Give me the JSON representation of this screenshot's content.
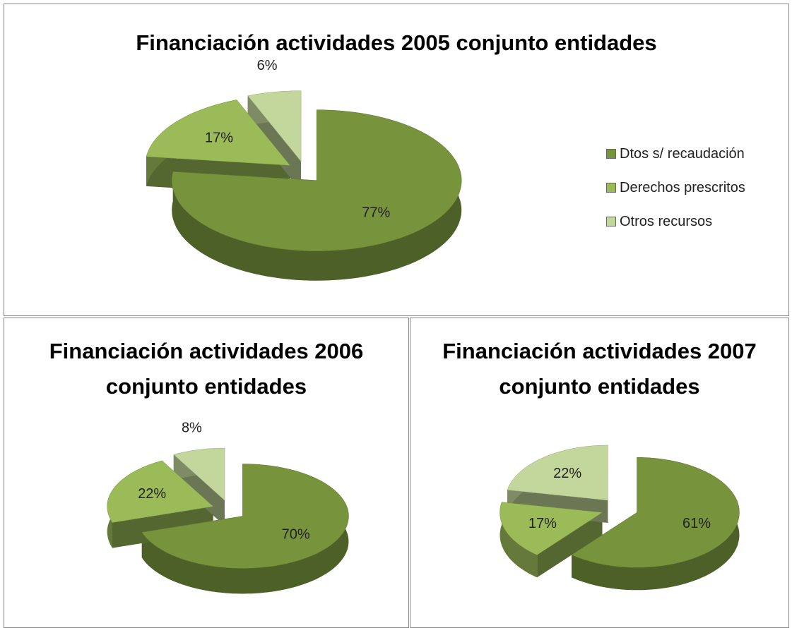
{
  "chart_data": [
    {
      "type": "pie",
      "title": "Financiación actividades 2005 conjunto entidades",
      "categories": [
        "Dtos s/ recaudación",
        "Derechos prescritos",
        "Otros recursos"
      ],
      "values": [
        77,
        17,
        6
      ],
      "value_labels": [
        "77%",
        "17%",
        "6%"
      ],
      "colors": [
        "#77933c",
        "#9bbb59",
        "#c3d69b"
      ],
      "legend": "right",
      "3d": true
    },
    {
      "type": "pie",
      "title": "Financiación actividades 2006 conjunto entidades",
      "values": [
        70,
        22,
        8
      ],
      "value_labels": [
        "70%",
        "22%",
        "8%"
      ],
      "colors": [
        "#77933c",
        "#9bbb59",
        "#c3d69b"
      ],
      "3d": true
    },
    {
      "type": "pie",
      "title": "Financiación actividades 2007 conjunto entidades",
      "values": [
        61,
        17,
        22
      ],
      "value_labels": [
        "61%",
        "17%",
        "22%"
      ],
      "colors": [
        "#77933c",
        "#9bbb59",
        "#c3d69b"
      ],
      "3d": true
    }
  ]
}
